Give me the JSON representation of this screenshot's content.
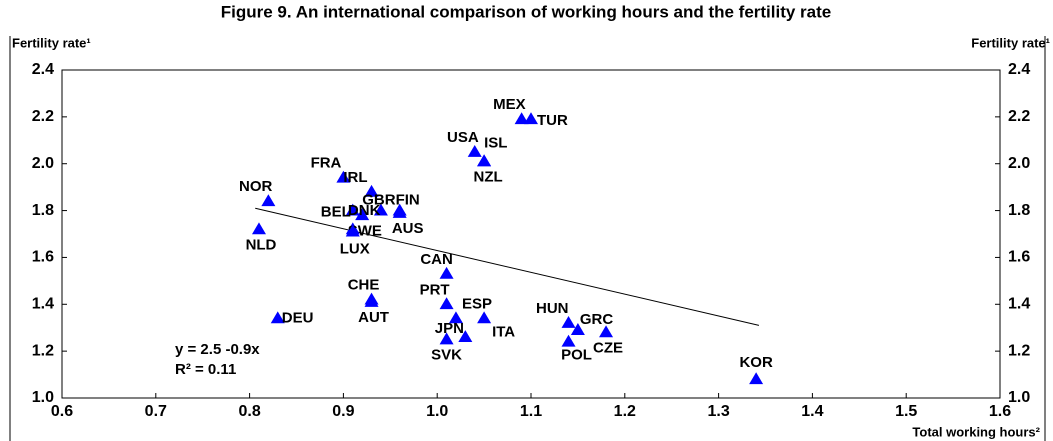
{
  "chart_data": {
    "type": "scatter",
    "title": "Figure 9. An international comparison of working hours and the fertility rate",
    "y_label": "Fertility rate¹",
    "y2_label": "Fertility rate¹",
    "x_label": "Total working hours²",
    "labels": [
      "MEX",
      "TUR",
      "USA",
      "ISL",
      "NZL",
      "FRA",
      "IRL",
      "NOR",
      "GBR",
      "FIN",
      "AUS",
      "BEL",
      "DNK",
      "SWE",
      "LUX",
      "NLD",
      "CAN",
      "CHE",
      "AUT",
      "PRT",
      "ESP",
      "ITA",
      "JPN",
      "SVK",
      "DEU",
      "HUN",
      "GRC",
      "CZE",
      "POL",
      "KOR"
    ],
    "x": [
      1.09,
      1.1,
      1.04,
      1.05,
      1.05,
      0.9,
      0.93,
      0.82,
      0.94,
      0.96,
      0.96,
      0.91,
      0.92,
      0.91,
      0.91,
      0.81,
      1.01,
      0.93,
      0.93,
      1.01,
      1.02,
      1.05,
      1.03,
      1.01,
      0.83,
      1.14,
      1.15,
      1.18,
      1.14,
      1.34
    ],
    "values": [
      2.19,
      2.19,
      2.05,
      2.01,
      2.01,
      1.94,
      1.88,
      1.84,
      1.8,
      1.8,
      1.79,
      1.8,
      1.78,
      1.72,
      1.71,
      1.72,
      1.53,
      1.42,
      1.41,
      1.4,
      1.34,
      1.34,
      1.26,
      1.25,
      1.34,
      1.32,
      1.29,
      1.28,
      1.24,
      1.08
    ],
    "color": "#0000ff",
    "trendline": {
      "x": [
        0.806,
        1.343
      ],
      "values": [
        1.81,
        1.31
      ]
    },
    "equation": "y  =  2.5  -0.9x",
    "r_squared": "R² =  0.11",
    "xlim": [
      0.6,
      1.6
    ],
    "xticks": [
      0.6,
      0.7,
      0.8,
      0.9,
      {
        "value": 1.0,
        "label": "1.0"
      },
      1.1,
      1.2,
      1.3,
      1.4,
      1.5,
      1.6
    ],
    "ylim": [
      1.0,
      2.4
    ],
    "yticks": [
      {
        "value": 1.0,
        "label": "1.0"
      },
      1.2,
      1.4,
      1.6,
      1.8,
      {
        "value": 2.0,
        "label": "2.0"
      },
      2.2,
      2.4
    ],
    "grid": false
  }
}
